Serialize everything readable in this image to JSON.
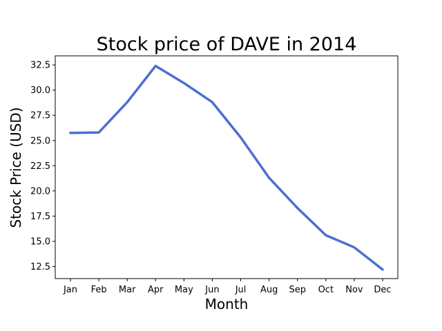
{
  "chart_data": {
    "type": "line",
    "title": "Stock price of DAVE in 2014",
    "xlabel": "Month",
    "ylabel": "Stock Price (USD)",
    "categories": [
      "Jan",
      "Feb",
      "Mar",
      "Apr",
      "May",
      "Jun",
      "Jul",
      "Aug",
      "Sep",
      "Oct",
      "Nov",
      "Dec"
    ],
    "series": [
      {
        "values": [
          25.75,
          25.8,
          28.8,
          32.4,
          30.7,
          28.8,
          25.3,
          21.3,
          18.3,
          15.6,
          14.4,
          12.2
        ],
        "color": "#4a6fd3"
      }
    ],
    "ylim": [
      11.3,
      33.4
    ],
    "yticks": [
      12.5,
      15.0,
      17.5,
      20.0,
      22.5,
      25.0,
      27.5,
      30.0,
      32.5
    ],
    "ytick_labels": [
      "12.5",
      "15.0",
      "17.5",
      "20.0",
      "22.5",
      "25.0",
      "27.5",
      "30.0",
      "32.5"
    ],
    "grid": false,
    "legend": "none"
  }
}
